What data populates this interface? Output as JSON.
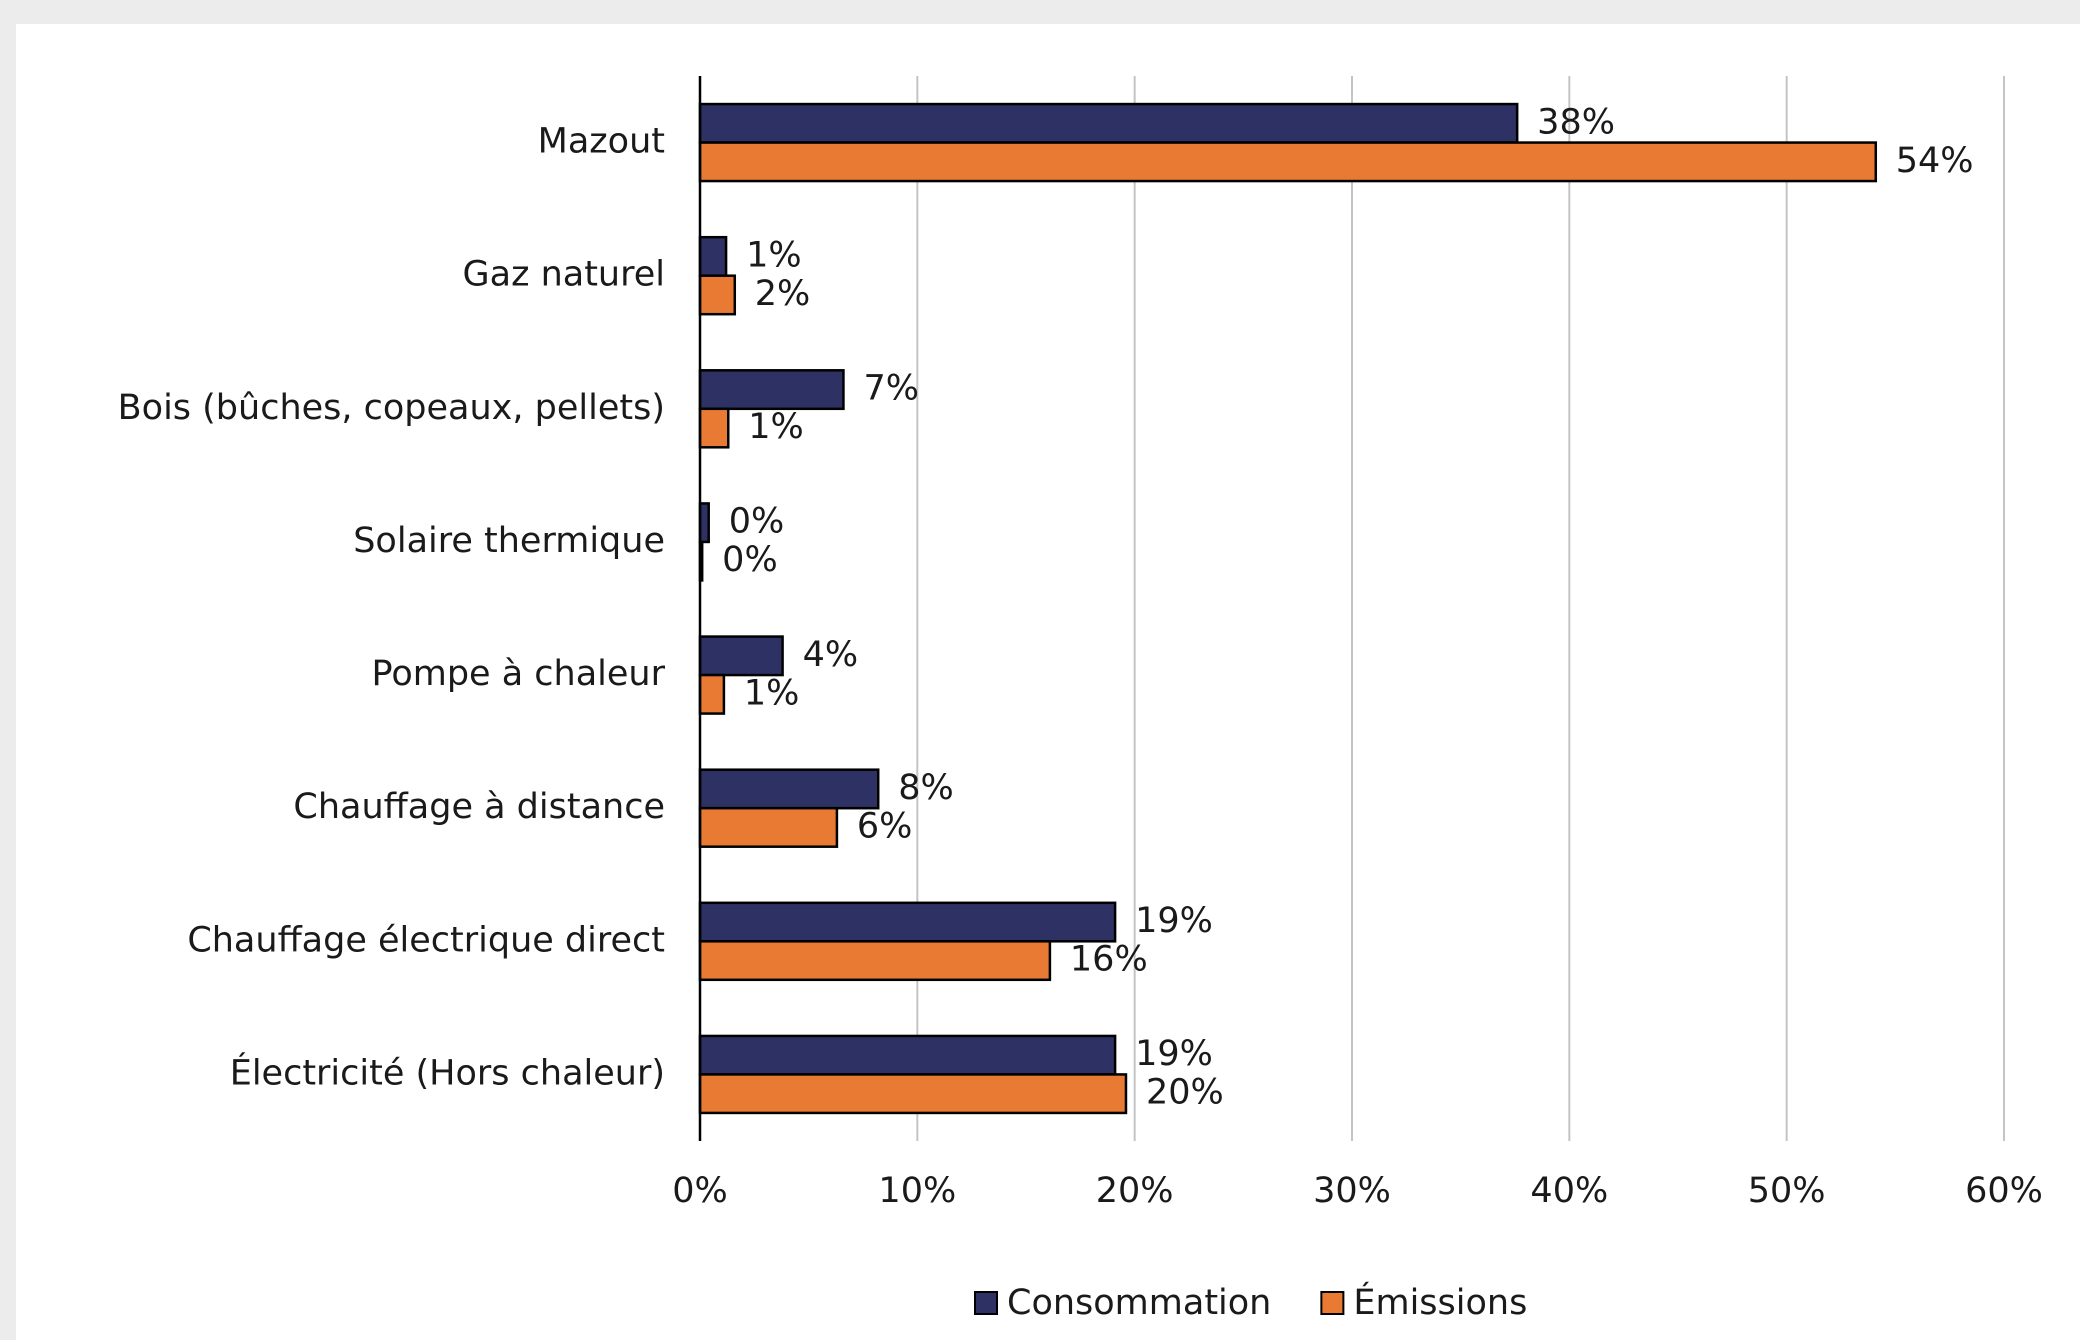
{
  "chart_data": {
    "type": "hbar",
    "categories": [
      "Mazout",
      "Gaz naturel",
      "Bois (bûches, copeaux, pellets)",
      "Solaire thermique",
      "Pompe à chaleur",
      "Chauffage à distance",
      "Chauffage électrique direct",
      "Électricité (Hors chaleur)"
    ],
    "series": [
      {
        "name": "Consommation",
        "color": "#2e3163",
        "label_color": "#3d4a8a",
        "values": [
          37.6,
          1.2,
          6.6,
          0.4,
          3.8,
          8.2,
          19.1,
          19.1
        ],
        "value_labels": [
          "38%",
          "1%",
          "7%",
          "0%",
          "4%",
          "8%",
          "19%",
          "19%"
        ]
      },
      {
        "name": "Émissions",
        "color": "#e87a33",
        "label_color": "#e87a33",
        "values": [
          54.1,
          1.6,
          1.3,
          0.1,
          1.1,
          6.3,
          16.1,
          19.6
        ],
        "value_labels": [
          "54%",
          "2%",
          "1%",
          "0%",
          "1%",
          "6%",
          "16%",
          "20%"
        ]
      }
    ],
    "xlim": [
      0,
      60
    ],
    "xticks": [
      {
        "value": 0,
        "label": "0%"
      },
      {
        "value": 10,
        "label": "10%"
      },
      {
        "value": 20,
        "label": "20%"
      },
      {
        "value": 30,
        "label": "30%"
      },
      {
        "value": 40,
        "label": "40%"
      },
      {
        "value": 50,
        "label": "50%"
      },
      {
        "value": 60,
        "label": "60%"
      }
    ],
    "grid": true,
    "legend": "bottom"
  }
}
